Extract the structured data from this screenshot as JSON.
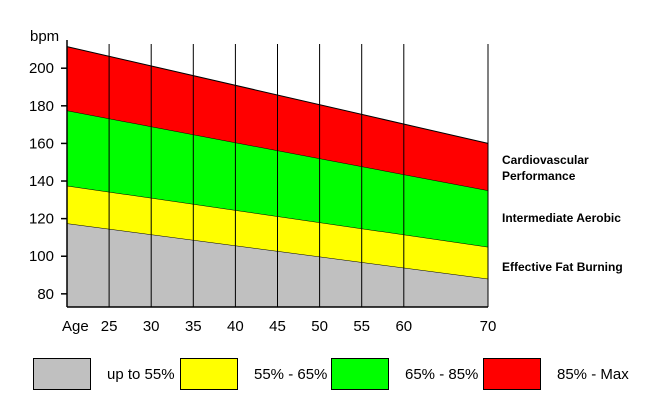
{
  "chart_data": {
    "type": "area",
    "ylabel": "bpm",
    "xlabel": "Age",
    "x_ticks": [
      25,
      30,
      35,
      40,
      45,
      50,
      55,
      60,
      70
    ],
    "x_tick_labels": [
      "25",
      "30",
      "35",
      "40",
      "45",
      "50",
      "55",
      "60",
      "70"
    ],
    "y_ticks": [
      80,
      100,
      120,
      140,
      160,
      180,
      200
    ],
    "xlim": [
      20,
      70
    ],
    "ylim": [
      73,
      215
    ],
    "grid": "vertical",
    "x": [
      20,
      70
    ],
    "bands": [
      {
        "name": "up to 55%",
        "color": "#c0c0c0",
        "lower": [
          73,
          73
        ],
        "upper": [
          117.5,
          88
        ]
      },
      {
        "name": "55% - 65%",
        "color": "#ffff00",
        "lower": [
          117.5,
          88
        ],
        "upper": [
          137.5,
          105
        ]
      },
      {
        "name": "65% - 85%",
        "color": "#00ff00",
        "lower": [
          137.5,
          105
        ],
        "upper": [
          177.5,
          135
        ]
      },
      {
        "name": "85% - Max",
        "color": "#ff0000",
        "lower": [
          177.5,
          135
        ],
        "upper": [
          211.5,
          160
        ]
      }
    ],
    "annotations": [
      {
        "lines": [
          "Cardiovascular",
          "Performance"
        ]
      },
      {
        "lines": [
          "Intermediate Aerobic"
        ]
      },
      {
        "lines": [
          "Effective Fat Burning"
        ]
      }
    ],
    "legend": [
      {
        "label": "up to 55%",
        "color": "#c0c0c0"
      },
      {
        "label": "55% - 65%",
        "color": "#ffff00"
      },
      {
        "label": "65% - 85%",
        "color": "#00ff00"
      },
      {
        "label": "85% - Max",
        "color": "#ff0000"
      }
    ]
  }
}
